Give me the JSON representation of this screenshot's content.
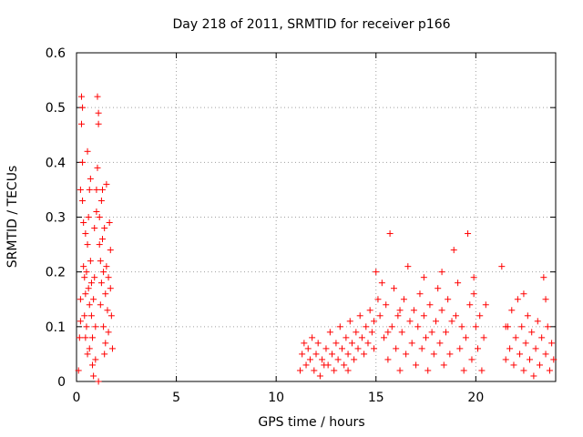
{
  "chart_data": {
    "type": "scatter",
    "title": "Day 218 of 2011, SRMTID for receiver p166",
    "xlabel": "GPS time / hours",
    "ylabel": "SRMTID / TECUs",
    "xlim": [
      0,
      24
    ],
    "ylim": [
      0,
      0.6
    ],
    "xticks": [
      0,
      5,
      10,
      15,
      20
    ],
    "xtick_labels": [
      "0",
      "5",
      "10",
      "15",
      "20"
    ],
    "yticks": [
      0,
      0.1,
      0.2,
      0.3,
      0.4,
      0.5,
      0.6
    ],
    "ytick_labels": [
      "0",
      "0.1",
      "0.2",
      "0.3",
      "0.4",
      "0.5",
      "0.6"
    ],
    "grid": true,
    "marker": "+",
    "color": "#ff0000",
    "series": [
      {
        "name": "SRMTID",
        "points": [
          [
            0.1,
            0.02
          ],
          [
            0.15,
            0.08
          ],
          [
            0.2,
            0.15
          ],
          [
            0.2,
            0.35
          ],
          [
            0.25,
            0.52
          ],
          [
            0.25,
            0.47
          ],
          [
            0.3,
            0.5
          ],
          [
            0.3,
            0.4
          ],
          [
            0.3,
            0.33
          ],
          [
            0.35,
            0.29
          ],
          [
            0.35,
            0.21
          ],
          [
            0.4,
            0.19
          ],
          [
            0.4,
            0.12
          ],
          [
            0.45,
            0.27
          ],
          [
            0.45,
            0.16
          ],
          [
            0.5,
            0.2
          ],
          [
            0.5,
            0.1
          ],
          [
            0.55,
            0.05
          ],
          [
            0.55,
            0.25
          ],
          [
            0.6,
            0.17
          ],
          [
            0.6,
            0.3
          ],
          [
            0.65,
            0.14
          ],
          [
            0.65,
            0.06
          ],
          [
            0.7,
            0.22
          ],
          [
            0.7,
            0.37
          ],
          [
            0.75,
            0.12
          ],
          [
            0.75,
            0.18
          ],
          [
            0.8,
            0.08
          ],
          [
            0.8,
            0.03
          ],
          [
            0.85,
            0.15
          ],
          [
            0.9,
            0.19
          ],
          [
            0.9,
            0.28
          ],
          [
            0.95,
            0.1
          ],
          [
            1.0,
            0.31
          ],
          [
            1.0,
            0.35
          ],
          [
            1.05,
            0.39
          ],
          [
            1.05,
            0.52
          ],
          [
            1.1,
            0.47
          ],
          [
            1.1,
            0.49
          ],
          [
            1.15,
            0.3
          ],
          [
            1.15,
            0.25
          ],
          [
            1.2,
            0.22
          ],
          [
            1.2,
            0.14
          ],
          [
            1.25,
            0.18
          ],
          [
            1.3,
            0.35
          ],
          [
            1.3,
            0.26
          ],
          [
            1.35,
            0.2
          ],
          [
            1.35,
            0.1
          ],
          [
            1.4,
            0.05
          ],
          [
            1.4,
            0.28
          ],
          [
            1.45,
            0.16
          ],
          [
            1.5,
            0.36
          ],
          [
            1.5,
            0.21
          ],
          [
            1.55,
            0.13
          ],
          [
            1.6,
            0.19
          ],
          [
            1.6,
            0.09
          ],
          [
            1.65,
            0.29
          ],
          [
            1.7,
            0.17
          ],
          [
            1.75,
            0.12
          ],
          [
            1.8,
            0.06
          ],
          [
            0.45,
            0.08
          ],
          [
            0.95,
            0.04
          ],
          [
            1.25,
            0.33
          ],
          [
            0.55,
            0.42
          ],
          [
            0.85,
            0.01
          ],
          [
            1.1,
            0.0
          ],
          [
            1.45,
            0.07
          ],
          [
            1.7,
            0.24
          ],
          [
            0.2,
            0.11
          ],
          [
            0.65,
            0.35
          ],
          [
            11.2,
            0.02
          ],
          [
            11.3,
            0.05
          ],
          [
            11.4,
            0.07
          ],
          [
            11.5,
            0.03
          ],
          [
            11.6,
            0.06
          ],
          [
            11.7,
            0.04
          ],
          [
            11.8,
            0.08
          ],
          [
            11.9,
            0.02
          ],
          [
            12.0,
            0.05
          ],
          [
            12.1,
            0.07
          ],
          [
            12.2,
            0.01
          ],
          [
            12.3,
            0.04
          ],
          [
            12.5,
            0.06
          ],
          [
            12.6,
            0.03
          ],
          [
            12.7,
            0.09
          ],
          [
            12.8,
            0.05
          ],
          [
            12.9,
            0.02
          ],
          [
            13.0,
            0.07
          ],
          [
            13.1,
            0.04
          ],
          [
            13.2,
            0.1
          ],
          [
            13.3,
            0.06
          ],
          [
            13.4,
            0.03
          ],
          [
            13.5,
            0.08
          ],
          [
            13.6,
            0.05
          ],
          [
            13.7,
            0.11
          ],
          [
            13.8,
            0.07
          ],
          [
            13.9,
            0.04
          ],
          [
            14.0,
            0.09
          ],
          [
            14.1,
            0.06
          ],
          [
            14.2,
            0.12
          ],
          [
            14.3,
            0.08
          ],
          [
            14.4,
            0.05
          ],
          [
            14.5,
            0.1
          ],
          [
            14.6,
            0.07
          ],
          [
            14.7,
            0.13
          ],
          [
            14.8,
            0.09
          ],
          [
            14.9,
            0.06
          ],
          [
            15.0,
            0.2
          ],
          [
            15.1,
            0.15
          ],
          [
            15.2,
            0.12
          ],
          [
            15.3,
            0.18
          ],
          [
            15.4,
            0.08
          ],
          [
            15.5,
            0.14
          ],
          [
            15.6,
            0.04
          ],
          [
            15.7,
            0.27
          ],
          [
            15.8,
            0.1
          ],
          [
            15.9,
            0.17
          ],
          [
            16.0,
            0.06
          ],
          [
            16.1,
            0.12
          ],
          [
            16.2,
            0.02
          ],
          [
            16.3,
            0.09
          ],
          [
            16.4,
            0.15
          ],
          [
            16.5,
            0.05
          ],
          [
            16.6,
            0.21
          ],
          [
            16.7,
            0.11
          ],
          [
            16.8,
            0.07
          ],
          [
            16.9,
            0.13
          ],
          [
            17.0,
            0.03
          ],
          [
            17.1,
            0.1
          ],
          [
            17.2,
            0.16
          ],
          [
            17.3,
            0.06
          ],
          [
            17.4,
            0.12
          ],
          [
            17.5,
            0.08
          ],
          [
            17.6,
            0.02
          ],
          [
            17.7,
            0.14
          ],
          [
            17.8,
            0.09
          ],
          [
            17.9,
            0.05
          ],
          [
            18.0,
            0.11
          ],
          [
            18.1,
            0.17
          ],
          [
            18.2,
            0.07
          ],
          [
            18.3,
            0.13
          ],
          [
            18.4,
            0.03
          ],
          [
            18.5,
            0.09
          ],
          [
            18.6,
            0.15
          ],
          [
            18.7,
            0.05
          ],
          [
            18.8,
            0.11
          ],
          [
            18.9,
            0.24
          ],
          [
            19.0,
            0.12
          ],
          [
            19.1,
            0.18
          ],
          [
            19.2,
            0.06
          ],
          [
            19.3,
            0.1
          ],
          [
            19.4,
            0.02
          ],
          [
            19.5,
            0.08
          ],
          [
            19.6,
            0.27
          ],
          [
            19.7,
            0.14
          ],
          [
            19.8,
            0.04
          ],
          [
            19.9,
            0.16
          ],
          [
            20.0,
            0.1
          ],
          [
            20.1,
            0.06
          ],
          [
            20.2,
            0.12
          ],
          [
            20.3,
            0.02
          ],
          [
            20.4,
            0.08
          ],
          [
            20.5,
            0.14
          ],
          [
            21.3,
            0.21
          ],
          [
            21.5,
            0.04
          ],
          [
            21.6,
            0.1
          ],
          [
            21.7,
            0.06
          ],
          [
            21.8,
            0.13
          ],
          [
            21.9,
            0.03
          ],
          [
            22.0,
            0.08
          ],
          [
            22.1,
            0.15
          ],
          [
            22.2,
            0.05
          ],
          [
            22.3,
            0.1
          ],
          [
            22.4,
            0.02
          ],
          [
            22.5,
            0.07
          ],
          [
            22.6,
            0.12
          ],
          [
            22.7,
            0.04
          ],
          [
            22.8,
            0.09
          ],
          [
            22.9,
            0.01
          ],
          [
            23.0,
            0.06
          ],
          [
            23.1,
            0.11
          ],
          [
            23.2,
            0.03
          ],
          [
            23.3,
            0.08
          ],
          [
            23.4,
            0.19
          ],
          [
            23.5,
            0.05
          ],
          [
            23.6,
            0.1
          ],
          [
            23.7,
            0.02
          ],
          [
            23.8,
            0.07
          ],
          [
            23.9,
            0.04
          ],
          [
            15.6,
            0.09
          ],
          [
            16.2,
            0.13
          ],
          [
            17.4,
            0.19
          ],
          [
            18.3,
            0.2
          ],
          [
            19.9,
            0.19
          ],
          [
            22.4,
            0.16
          ],
          [
            14.9,
            0.11
          ],
          [
            13.6,
            0.02
          ],
          [
            12.4,
            0.03
          ],
          [
            21.5,
            0.1
          ],
          [
            23.5,
            0.15
          ]
        ]
      }
    ]
  }
}
